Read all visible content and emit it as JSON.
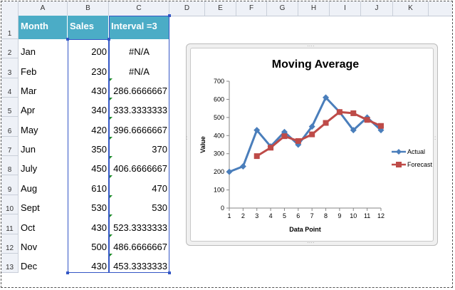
{
  "columns": [
    "A",
    "B",
    "C",
    "D",
    "E",
    "F",
    "G",
    "H",
    "I",
    "J",
    "K"
  ],
  "rows": [
    "1",
    "2",
    "3",
    "4",
    "5",
    "6",
    "7",
    "8",
    "9",
    "10",
    "11",
    "12",
    "13"
  ],
  "header": {
    "month": "Month",
    "sales": "Sales",
    "interval": "Interval =3"
  },
  "table": [
    {
      "month": "Jan",
      "sales": "200",
      "interval": "#N/A"
    },
    {
      "month": "Feb",
      "sales": "230",
      "interval": "#N/A"
    },
    {
      "month": "Mar",
      "sales": "430",
      "interval": "286.6666667"
    },
    {
      "month": "Apr",
      "sales": "340",
      "interval": "333.3333333"
    },
    {
      "month": "May",
      "sales": "420",
      "interval": "396.6666667"
    },
    {
      "month": "Jun",
      "sales": "350",
      "interval": "370"
    },
    {
      "month": "July",
      "sales": "450",
      "interval": "406.6666667"
    },
    {
      "month": "Aug",
      "sales": "610",
      "interval": "470"
    },
    {
      "month": "Sept",
      "sales": "530",
      "interval": "530"
    },
    {
      "month": "Oct",
      "sales": "430",
      "interval": "523.3333333"
    },
    {
      "month": "Nov",
      "sales": "500",
      "interval": "486.6666667"
    },
    {
      "month": "Dec",
      "sales": "430",
      "interval": "453.3333333"
    }
  ],
  "colors": {
    "header_fill": "#4bacc6",
    "actual": "#4a7ebb",
    "forecast": "#be4b48",
    "selection": "#3356c5"
  },
  "chart_data": {
    "type": "line",
    "title": "Moving Average",
    "xlabel": "Data Point",
    "ylabel": "Value",
    "x": [
      1,
      2,
      3,
      4,
      5,
      6,
      7,
      8,
      9,
      10,
      11,
      12
    ],
    "x_tick_labels": [
      "1",
      "2",
      "3",
      "4",
      "5",
      "6",
      "7",
      "8",
      "9",
      "10",
      "11",
      "12"
    ],
    "ylim": [
      0,
      700
    ],
    "y_tick_labels": [
      "0",
      "100",
      "200",
      "300",
      "400",
      "500",
      "600",
      "700"
    ],
    "legend_position": "right",
    "grid": false,
    "series": [
      {
        "name": "Actual",
        "marker": "diamond",
        "values": [
          200,
          230,
          430,
          340,
          420,
          350,
          450,
          610,
          530,
          430,
          500,
          430
        ]
      },
      {
        "name": "Forecast",
        "marker": "square",
        "values": [
          null,
          null,
          286.6666667,
          333.3333333,
          396.6666667,
          370,
          406.6666667,
          470,
          530,
          523.3333333,
          486.6666667,
          453.3333333
        ]
      }
    ]
  }
}
